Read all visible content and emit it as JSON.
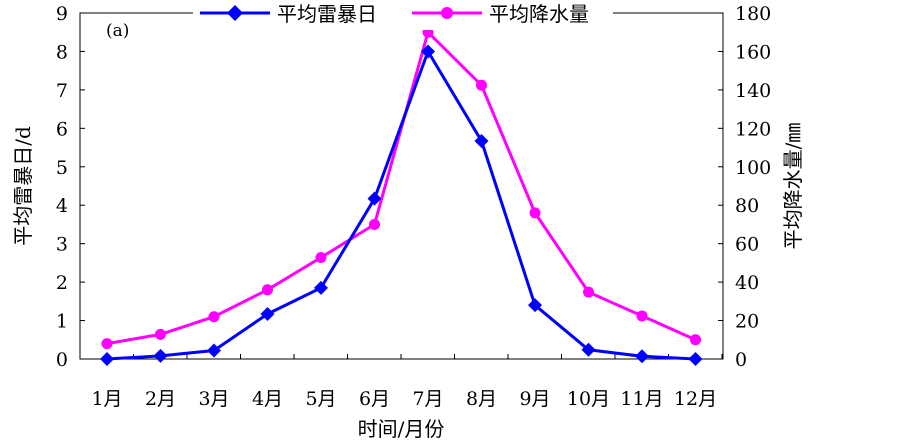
{
  "chart_data": {
    "type": "line",
    "panel_label": "(a)",
    "xlabel": "时间/月份",
    "ylabel_left": "平均雷暴日/d",
    "ylabel_right": "平均降水量/㎜",
    "categories": [
      "1月",
      "2月",
      "3月",
      "4月",
      "5月",
      "6月",
      "7月",
      "8月",
      "9月",
      "10月",
      "11月",
      "12月"
    ],
    "y_left_range": [
      0,
      9
    ],
    "y_left_ticks": [
      "0",
      "1",
      "2",
      "3",
      "4",
      "5",
      "6",
      "7",
      "8",
      "9"
    ],
    "y_right_range": [
      0,
      180
    ],
    "y_right_ticks": [
      "0",
      "20",
      "40",
      "60",
      "80",
      "100",
      "120",
      "140",
      "160",
      "180"
    ],
    "grid": false,
    "legend_position": "top-center",
    "series": [
      {
        "name": "平均雷暴日",
        "axis": "left",
        "marker": "diamond",
        "color": "#0000ff",
        "values": [
          0.0,
          0.08,
          0.22,
          1.17,
          1.85,
          4.17,
          8.0,
          5.67,
          1.4,
          0.24,
          0.07,
          0.0
        ]
      },
      {
        "name": "平均降水量",
        "axis": "right",
        "marker": "circle",
        "color": "#ff00ff",
        "values": [
          8.0,
          12.8,
          22.0,
          36.0,
          52.8,
          70.0,
          170.0,
          142.4,
          76.0,
          34.8,
          22.4,
          10.0
        ]
      }
    ]
  }
}
